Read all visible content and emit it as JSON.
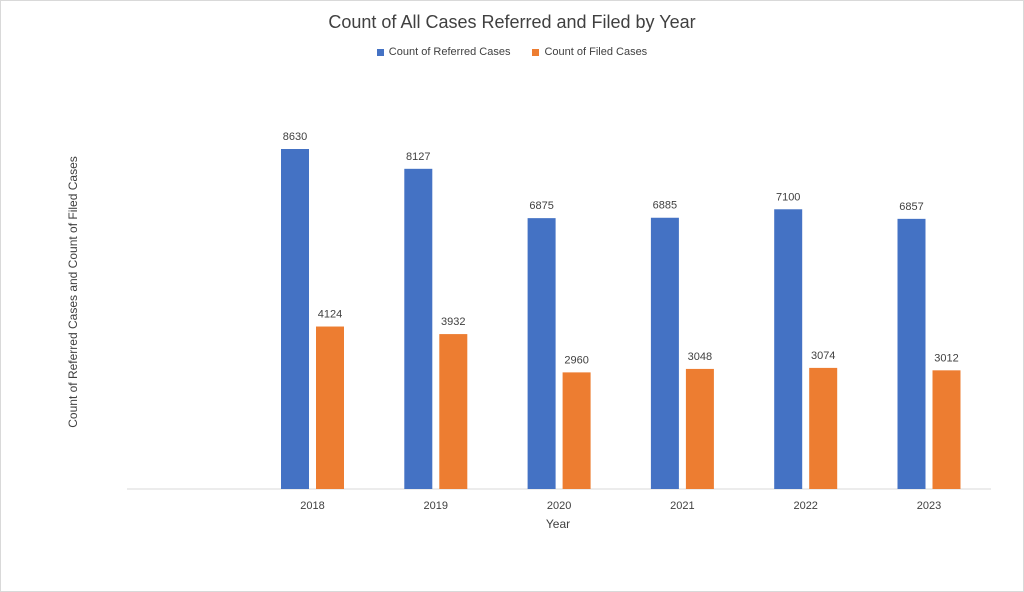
{
  "chart_data": {
    "type": "bar",
    "title": "Count of All Cases Referred and Filed by Year",
    "xlabel": "Year",
    "ylabel": "Count of Referred Cases and Count of Filed Cases",
    "categories": [
      "2018",
      "2019",
      "2020",
      "2021",
      "2022",
      "2023"
    ],
    "series": [
      {
        "name": "Count of Referred Cases",
        "color": "#4472C4",
        "values": [
          8630,
          8127,
          6875,
          6885,
          7100,
          6857
        ]
      },
      {
        "name": "Count of Filed Cases",
        "color": "#ED7D31",
        "values": [
          4124,
          3932,
          2960,
          3048,
          3074,
          3012
        ]
      }
    ],
    "ylim": [
      0,
      9000
    ],
    "grid": false,
    "legend_position": "top",
    "data_labels": true
  }
}
